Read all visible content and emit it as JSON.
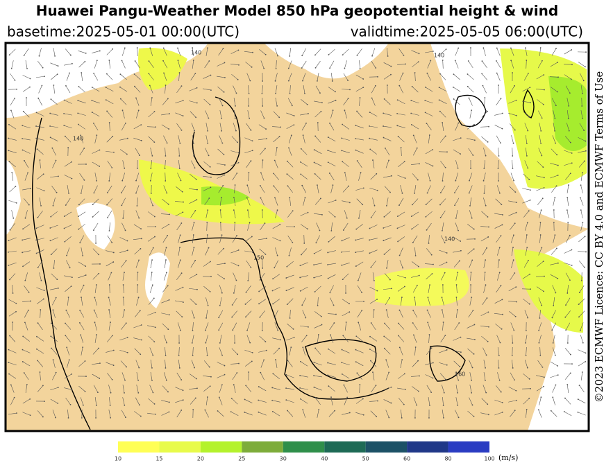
{
  "header": {
    "title": "Huawei Pangu-Weather Model 850 hPa geopotential height & wind",
    "basetime": "basetime:2025-05-01 00:00(UTC)",
    "validtime": "validtime:2025-05-05 06:00(UTC)"
  },
  "license": "©2023 ECMWF Licence: CC BY 4.0 and ECMWF Terms of Use",
  "map": {
    "contour_labels": [
      "140",
      "140",
      "140",
      "150",
      "160",
      "140"
    ]
  },
  "colorbar": {
    "unit": "(m/s)",
    "ticks": [
      10,
      15,
      20,
      25,
      30,
      40,
      50,
      60,
      80,
      100
    ],
    "colors": [
      "#ffff55",
      "#e8fb4a",
      "#b4f22c",
      "#7dac3a",
      "#2f8f4a",
      "#1d6a55",
      "#1c5166",
      "#203888",
      "#2a3cc2"
    ]
  }
}
